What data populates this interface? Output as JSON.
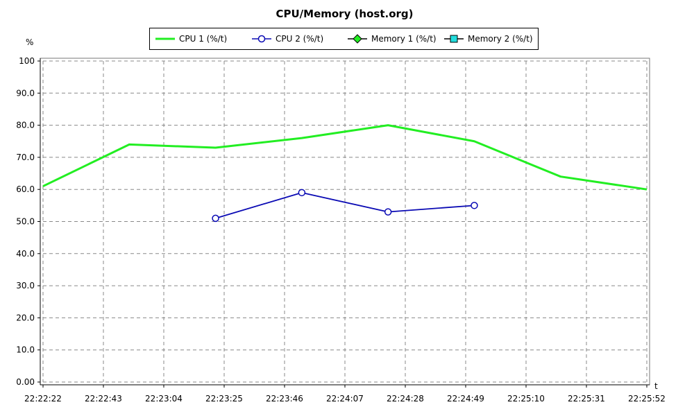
{
  "chart_data": {
    "type": "line",
    "title": "CPU/Memory (host.org)",
    "xlabel": "t",
    "ylabel": "%",
    "ylim": [
      0,
      100
    ],
    "y_ticks": [
      "0.00",
      "10.0",
      "20.0",
      "30.0",
      "40.0",
      "50.0",
      "60.0",
      "70.0",
      "80.0",
      "90.0",
      "100"
    ],
    "x_tick_labels": [
      "22:22:22",
      "22:22:43",
      "22:23:04",
      "22:23:25",
      "22:23:46",
      "22:24:07",
      "22:24:28",
      "22:24:49",
      "22:25:10",
      "22:25:31",
      "22:25:52"
    ],
    "xlim": [
      "22:22:22",
      "22:25:52"
    ],
    "grid": true,
    "legend_position": "top",
    "series": [
      {
        "name": "CPU 1 (%/t)",
        "color": "#22ee22",
        "marker": "none",
        "points": [
          {
            "x": "22:22:22",
            "y": 61
          },
          {
            "x": "22:22:52",
            "y": 74
          },
          {
            "x": "22:23:22",
            "y": 73
          },
          {
            "x": "22:23:52",
            "y": 76
          },
          {
            "x": "22:24:22",
            "y": 80
          },
          {
            "x": "22:24:52",
            "y": 75
          },
          {
            "x": "22:25:22",
            "y": 64
          },
          {
            "x": "22:25:52",
            "y": 60
          }
        ]
      },
      {
        "name": "CPU 2 (%/t)",
        "color": "#0a0ab4",
        "marker": "circle",
        "points": [
          {
            "x": "22:23:22",
            "y": 51
          },
          {
            "x": "22:23:52",
            "y": 59
          },
          {
            "x": "22:24:22",
            "y": 53
          },
          {
            "x": "22:24:52",
            "y": 55
          }
        ]
      },
      {
        "name": "Memory 1 (%/t)",
        "color": "#22ee22",
        "marker": "diamond",
        "points": []
      },
      {
        "name": "Memory 2 (%/t)",
        "color": "#22dddd",
        "marker": "square",
        "points": []
      }
    ]
  }
}
